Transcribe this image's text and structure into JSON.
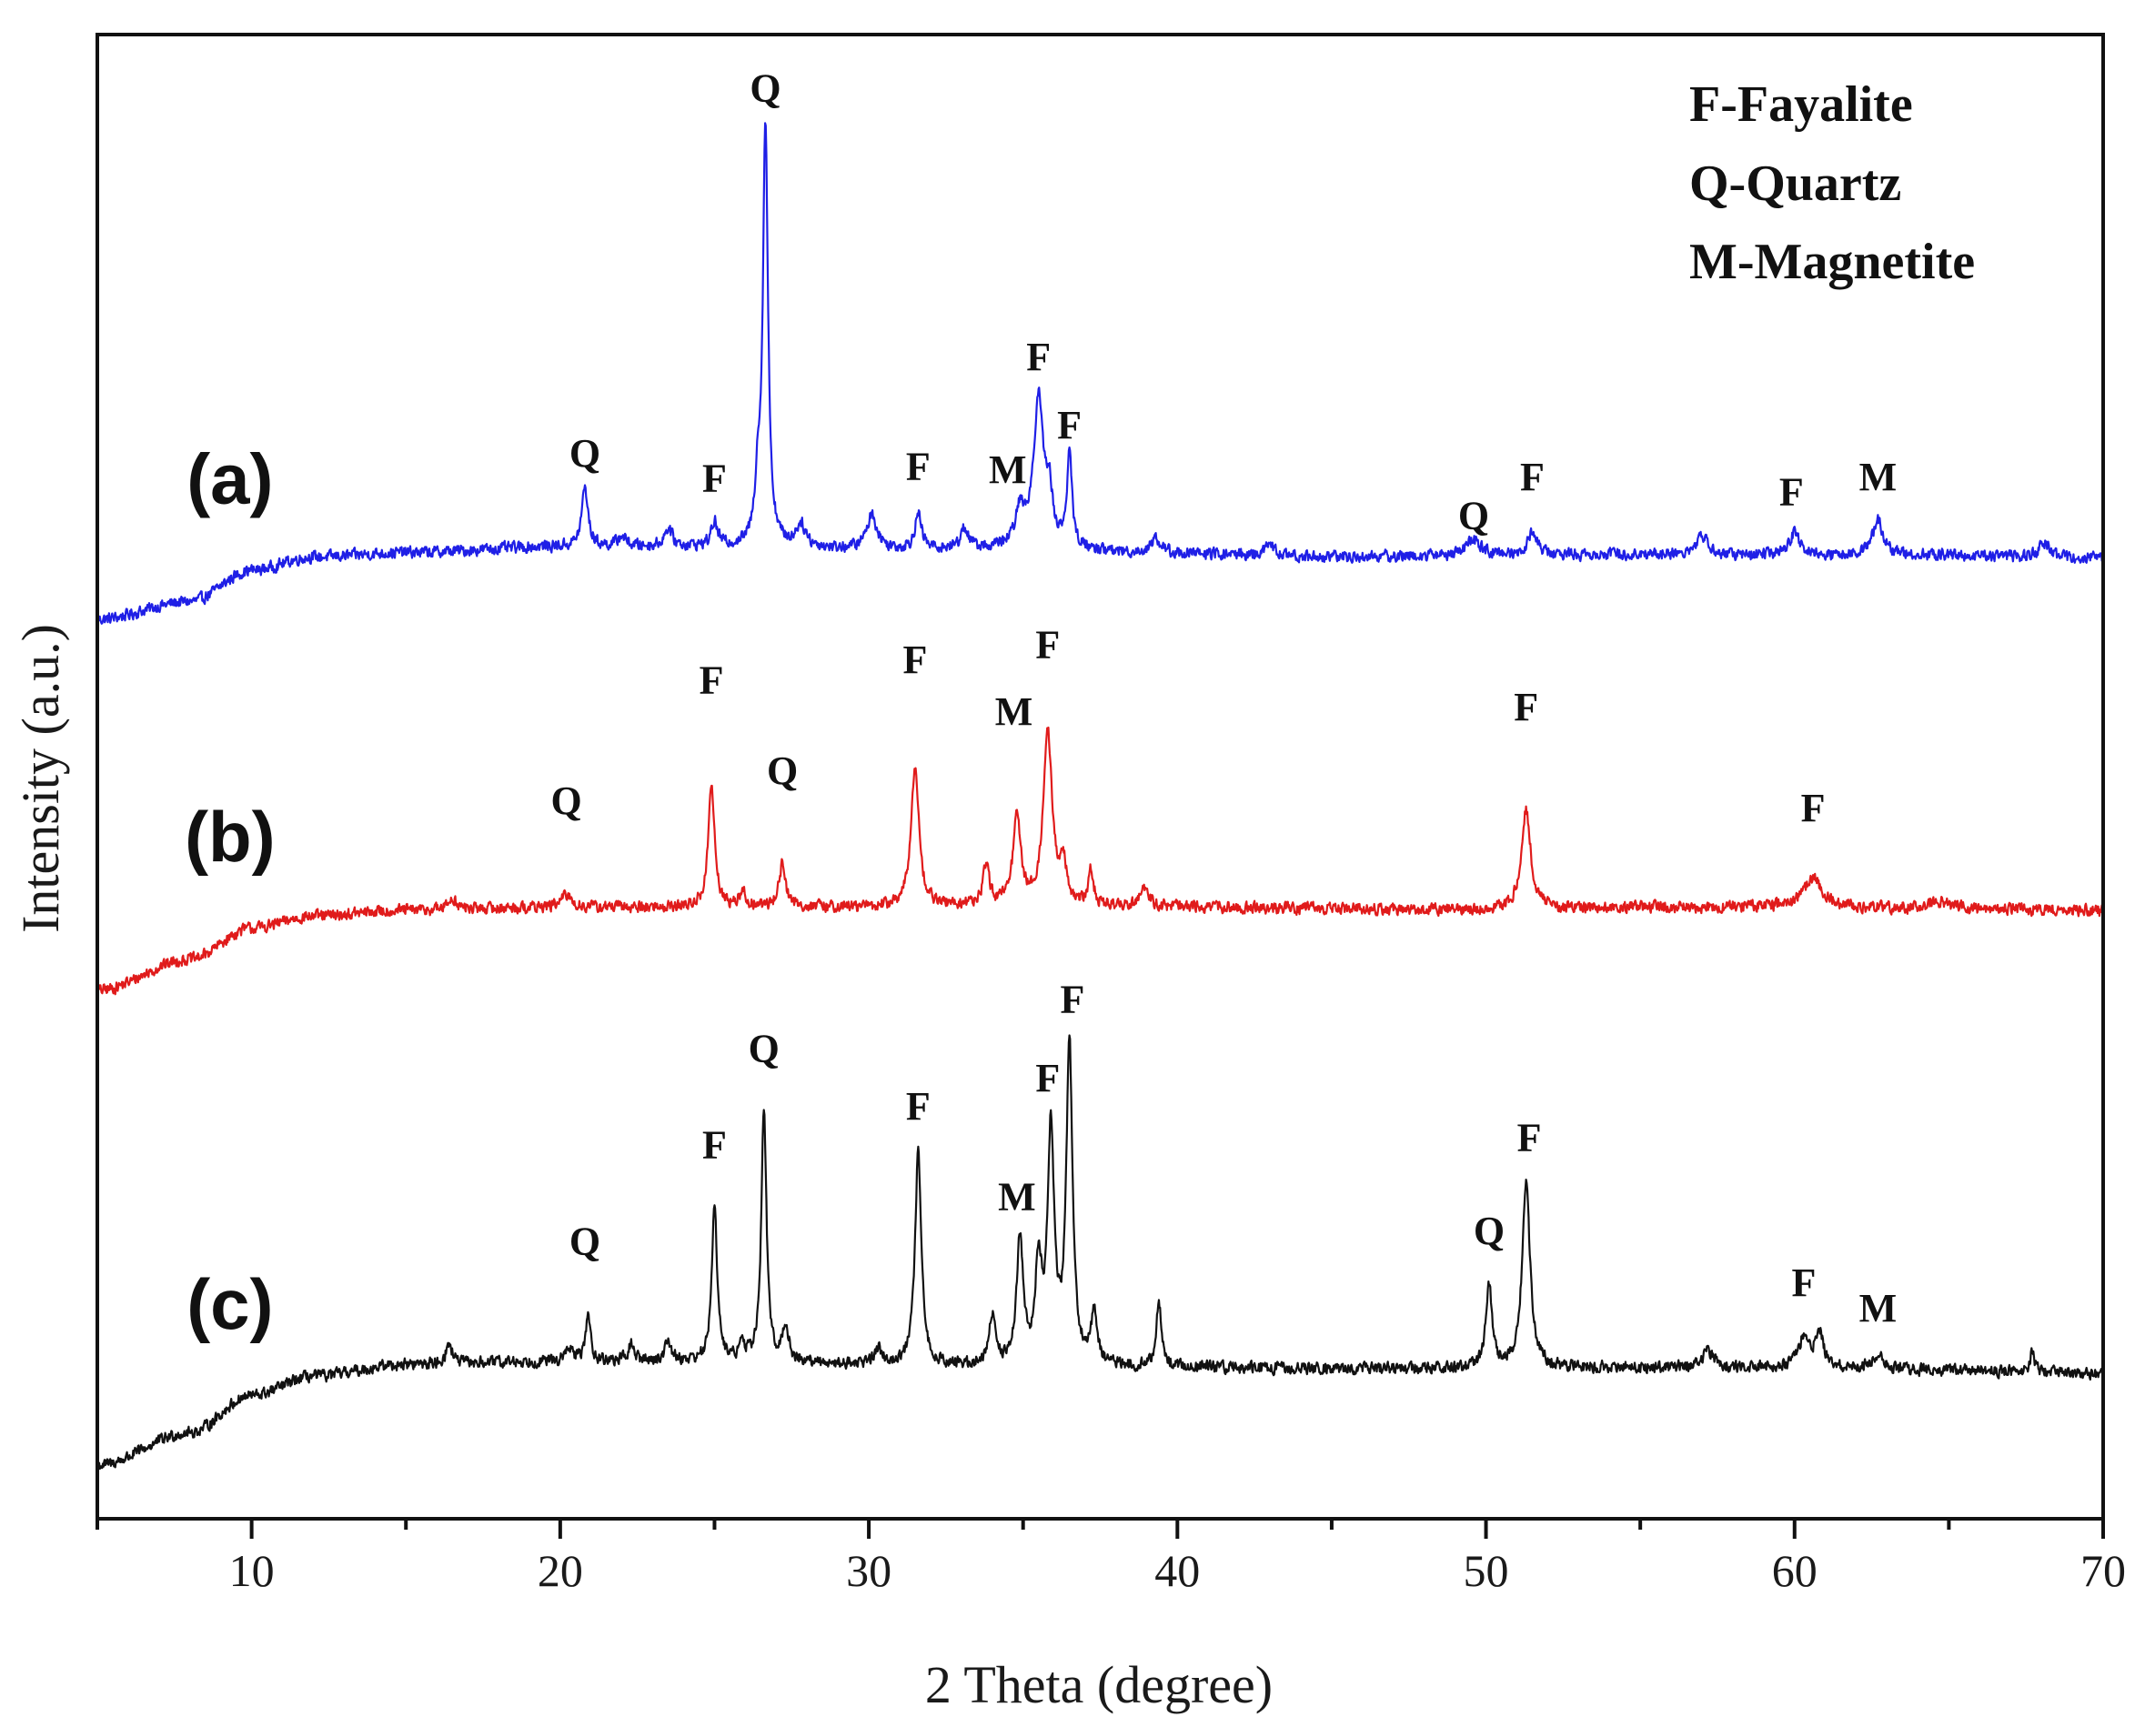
{
  "chart_data": {
    "type": "line",
    "title": "",
    "xlabel": "2 Theta (degree)",
    "ylabel": "Intensity (a.u.)",
    "xlim": [
      5,
      70
    ],
    "ylim": [
      0,
      100
    ],
    "x_ticks": [
      10,
      20,
      30,
      40,
      50,
      60,
      70
    ],
    "x_tick_labels": [
      "10",
      "20",
      "30",
      "40",
      "50",
      "60",
      "70"
    ],
    "y_ticks_shown": false,
    "legend": {
      "placement": "top-right",
      "entries": [
        "F-Fayalite",
        "Q-Quartz",
        "M-Magnetite"
      ]
    },
    "series": [
      {
        "name": "(a)",
        "label": "(a)",
        "color": "#1f1fe6",
        "baseline": [
          [
            5,
            60.6
          ],
          [
            8,
            61.8
          ],
          [
            10,
            63.9
          ],
          [
            12,
            64.8
          ],
          [
            15,
            65.1
          ],
          [
            20,
            65.5
          ],
          [
            25,
            65.5
          ],
          [
            30,
            65.3
          ],
          [
            35,
            65.3
          ],
          [
            40,
            65.0
          ],
          [
            45,
            64.8
          ],
          [
            50,
            64.9
          ],
          [
            55,
            65.0
          ],
          [
            60,
            64.9
          ],
          [
            65,
            64.9
          ],
          [
            70,
            64.7
          ]
        ],
        "noise": 0.35,
        "peaks": [
          {
            "x": 20.8,
            "h": 4.0,
            "w": 0.12
          },
          {
            "x": 22.0,
            "h": 0.7,
            "w": 0.15
          },
          {
            "x": 23.5,
            "h": 1.2,
            "w": 0.15
          },
          {
            "x": 25.0,
            "h": 1.6,
            "w": 0.12
          },
          {
            "x": 26.4,
            "h": 3.8,
            "w": 0.1
          },
          {
            "x": 26.65,
            "h": 28.3,
            "w": 0.1
          },
          {
            "x": 27.8,
            "h": 1.5,
            "w": 0.2
          },
          {
            "x": 30.1,
            "h": 2.3,
            "w": 0.2
          },
          {
            "x": 31.6,
            "h": 2.3,
            "w": 0.13
          },
          {
            "x": 33.1,
            "h": 1.4,
            "w": 0.15
          },
          {
            "x": 34.9,
            "h": 2.3,
            "w": 0.18
          },
          {
            "x": 35.5,
            "h": 10.0,
            "w": 0.2
          },
          {
            "x": 35.85,
            "h": 3.0,
            "w": 0.12
          },
          {
            "x": 36.5,
            "h": 6.2,
            "w": 0.1
          },
          {
            "x": 39.3,
            "h": 1.0,
            "w": 0.2
          },
          {
            "x": 43.0,
            "h": 0.7,
            "w": 0.2
          },
          {
            "x": 49.6,
            "h": 1.0,
            "w": 0.3
          },
          {
            "x": 51.5,
            "h": 1.6,
            "w": 0.18
          },
          {
            "x": 57.0,
            "h": 1.3,
            "w": 0.2
          },
          {
            "x": 60.0,
            "h": 1.5,
            "w": 0.2
          },
          {
            "x": 62.7,
            "h": 2.4,
            "w": 0.22
          },
          {
            "x": 68.1,
            "h": 1.0,
            "w": 0.2
          }
        ],
        "peak_labels": [
          {
            "x": 20.8,
            "y": 70.9,
            "text": "Q"
          },
          {
            "x": 25.0,
            "y": 69.2,
            "text": "F"
          },
          {
            "x": 26.65,
            "y": 95.5,
            "text": "Q"
          },
          {
            "x": 31.6,
            "y": 70.0,
            "text": "F"
          },
          {
            "x": 34.5,
            "y": 69.8,
            "text": "M"
          },
          {
            "x": 35.5,
            "y": 77.4,
            "text": "F"
          },
          {
            "x": 36.5,
            "y": 72.8,
            "text": "F"
          },
          {
            "x": 49.6,
            "y": 66.7,
            "text": "Q"
          },
          {
            "x": 51.5,
            "y": 69.3,
            "text": "F"
          },
          {
            "x": 59.9,
            "y": 68.3,
            "text": "F"
          },
          {
            "x": 62.7,
            "y": 69.3,
            "text": "M"
          }
        ]
      },
      {
        "name": "(b)",
        "label": "(b)",
        "color": "#e01b1b",
        "baseline": [
          [
            5,
            35.6
          ],
          [
            8,
            37.7
          ],
          [
            10,
            39.8
          ],
          [
            12,
            40.6
          ],
          [
            15,
            41.0
          ],
          [
            20,
            41.2
          ],
          [
            25,
            41.2
          ],
          [
            30,
            41.2
          ],
          [
            35,
            41.3
          ],
          [
            40,
            41.2
          ],
          [
            45,
            41.1
          ],
          [
            50,
            41.0
          ],
          [
            55,
            41.2
          ],
          [
            60,
            41.2
          ],
          [
            65,
            41.1
          ],
          [
            70,
            41.0
          ]
        ],
        "noise": 0.35,
        "peaks": [
          {
            "x": 16.5,
            "h": 0.8,
            "w": 0.15
          },
          {
            "x": 20.2,
            "h": 0.8,
            "w": 0.2
          },
          {
            "x": 24.9,
            "h": 8.3,
            "w": 0.12
          },
          {
            "x": 25.9,
            "h": 1.0,
            "w": 0.12
          },
          {
            "x": 27.2,
            "h": 2.9,
            "w": 0.13
          },
          {
            "x": 31.5,
            "h": 9.6,
            "w": 0.15
          },
          {
            "x": 33.8,
            "h": 2.6,
            "w": 0.12
          },
          {
            "x": 34.8,
            "h": 5.8,
            "w": 0.15
          },
          {
            "x": 35.8,
            "h": 11.6,
            "w": 0.17
          },
          {
            "x": 36.3,
            "h": 2.5,
            "w": 0.13
          },
          {
            "x": 37.2,
            "h": 2.2,
            "w": 0.1
          },
          {
            "x": 38.9,
            "h": 1.3,
            "w": 0.18
          },
          {
            "x": 51.3,
            "h": 6.8,
            "w": 0.18
          },
          {
            "x": 60.6,
            "h": 2.0,
            "w": 0.35
          },
          {
            "x": 64.6,
            "h": 0.5,
            "w": 0.4
          }
        ],
        "peak_labels": [
          {
            "x": 20.2,
            "y": 47.5,
            "text": "Q"
          },
          {
            "x": 24.9,
            "y": 55.6,
            "text": "F"
          },
          {
            "x": 27.2,
            "y": 49.5,
            "text": "Q"
          },
          {
            "x": 31.5,
            "y": 57.0,
            "text": "F"
          },
          {
            "x": 34.7,
            "y": 53.5,
            "text": "M"
          },
          {
            "x": 35.8,
            "y": 58.0,
            "text": "F"
          },
          {
            "x": 51.3,
            "y": 53.8,
            "text": "F"
          },
          {
            "x": 60.6,
            "y": 47.0,
            "text": "F"
          }
        ]
      },
      {
        "name": "(c)",
        "label": "(c)",
        "color": "#111111",
        "baseline": [
          [
            5,
            3.6
          ],
          [
            8,
            5.8
          ],
          [
            10,
            8.3
          ],
          [
            12,
            9.6
          ],
          [
            15,
            10.4
          ],
          [
            20,
            10.6
          ],
          [
            25,
            10.6
          ],
          [
            30,
            10.4
          ],
          [
            35,
            10.2
          ],
          [
            40,
            10.2
          ],
          [
            45,
            10.1
          ],
          [
            50,
            10.1
          ],
          [
            55,
            10.2
          ],
          [
            60,
            10.2
          ],
          [
            65,
            10.0
          ],
          [
            70,
            9.8
          ]
        ],
        "noise": 0.35,
        "peaks": [
          {
            "x": 16.4,
            "h": 1.3,
            "w": 0.13
          },
          {
            "x": 20.3,
            "h": 0.9,
            "w": 0.12
          },
          {
            "x": 20.9,
            "h": 3.0,
            "w": 0.1
          },
          {
            "x": 22.3,
            "h": 1.1,
            "w": 0.12
          },
          {
            "x": 23.5,
            "h": 1.4,
            "w": 0.12
          },
          {
            "x": 25.0,
            "h": 10.8,
            "w": 0.1
          },
          {
            "x": 25.9,
            "h": 1.0,
            "w": 0.12
          },
          {
            "x": 26.6,
            "h": 17.0,
            "w": 0.1
          },
          {
            "x": 27.3,
            "h": 2.2,
            "w": 0.13
          },
          {
            "x": 30.3,
            "h": 1.0,
            "w": 0.15
          },
          {
            "x": 31.6,
            "h": 14.3,
            "w": 0.12
          },
          {
            "x": 34.0,
            "h": 3.4,
            "w": 0.12
          },
          {
            "x": 34.9,
            "h": 8.5,
            "w": 0.13
          },
          {
            "x": 35.5,
            "h": 6.5,
            "w": 0.12
          },
          {
            "x": 35.9,
            "h": 15.5,
            "w": 0.13
          },
          {
            "x": 36.5,
            "h": 21.7,
            "w": 0.12
          },
          {
            "x": 37.3,
            "h": 3.4,
            "w": 0.12
          },
          {
            "x": 39.4,
            "h": 4.3,
            "w": 0.1
          },
          {
            "x": 50.1,
            "h": 5.6,
            "w": 0.12
          },
          {
            "x": 51.3,
            "h": 12.8,
            "w": 0.15
          },
          {
            "x": 57.2,
            "h": 1.1,
            "w": 0.2
          },
          {
            "x": 60.3,
            "h": 2.0,
            "w": 0.2
          },
          {
            "x": 60.8,
            "h": 2.4,
            "w": 0.15
          },
          {
            "x": 62.7,
            "h": 1.0,
            "w": 0.2
          },
          {
            "x": 67.7,
            "h": 1.6,
            "w": 0.08
          }
        ],
        "peak_labels": [
          {
            "x": 20.8,
            "y": 17.8,
            "text": "Q"
          },
          {
            "x": 25.0,
            "y": 24.3,
            "text": "F"
          },
          {
            "x": 26.6,
            "y": 30.8,
            "text": "Q"
          },
          {
            "x": 31.6,
            "y": 26.9,
            "text": "F"
          },
          {
            "x": 34.8,
            "y": 20.8,
            "text": "M"
          },
          {
            "x": 35.8,
            "y": 28.8,
            "text": "F"
          },
          {
            "x": 36.6,
            "y": 34.1,
            "text": "F"
          },
          {
            "x": 50.1,
            "y": 18.5,
            "text": "Q"
          },
          {
            "x": 51.4,
            "y": 24.8,
            "text": "F"
          },
          {
            "x": 60.3,
            "y": 15.0,
            "text": "F"
          },
          {
            "x": 62.7,
            "y": 13.3,
            "text": "M"
          }
        ]
      }
    ]
  }
}
